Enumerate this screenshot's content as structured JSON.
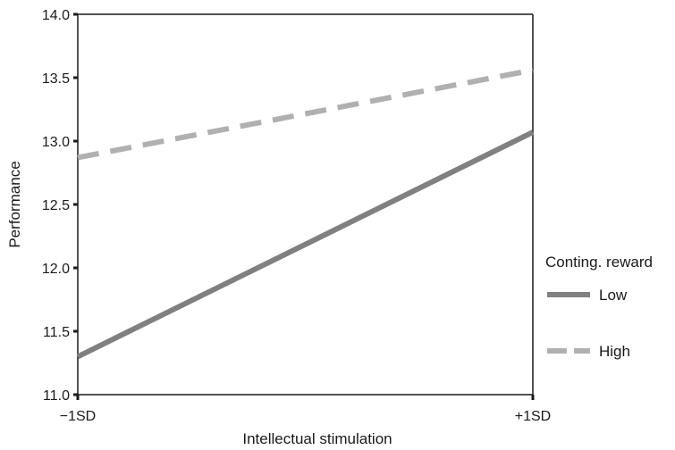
{
  "chart_data": {
    "type": "line",
    "title": "",
    "xlabel": "Intellectual stimulation",
    "ylabel": "Performance",
    "categories": [
      "−1SD",
      "+1SD"
    ],
    "y_ticks": [
      "11.0",
      "11.5",
      "12.0",
      "12.5",
      "13.0",
      "13.5",
      "14.0"
    ],
    "ylim": [
      11.0,
      14.0
    ],
    "grid": false,
    "legend_title": "Conting. reward",
    "legend_position": "right",
    "series": [
      {
        "name": "Low",
        "values": [
          11.3,
          13.07
        ],
        "color": "#808080",
        "style": "solid"
      },
      {
        "name": "High",
        "values": [
          12.87,
          13.56
        ],
        "color": "#b0b0b0",
        "style": "dashed"
      }
    ]
  }
}
